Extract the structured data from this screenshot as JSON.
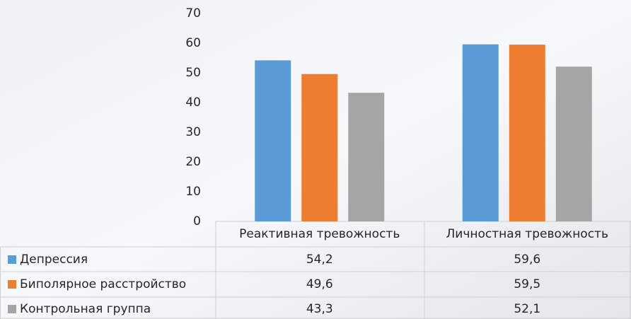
{
  "chart_data": {
    "type": "bar",
    "categories": [
      "Реактивная тревожность",
      "Личностная тревожность"
    ],
    "series": [
      {
        "name": "Депрессия",
        "color": "#5b9bd5",
        "values": [
          54.2,
          59.6
        ],
        "value_labels": [
          "54,2",
          "59,6"
        ]
      },
      {
        "name": "Биполярное расстройство",
        "color": "#ed7d31",
        "values": [
          49.6,
          59.5
        ],
        "value_labels": [
          "49,6",
          "59,5"
        ]
      },
      {
        "name": "Контрольная группа",
        "color": "#a5a5a5",
        "values": [
          43.3,
          52.1
        ],
        "value_labels": [
          "43,3",
          "52,1"
        ]
      }
    ],
    "ylim": [
      0,
      70
    ],
    "yticks": [
      0,
      10,
      20,
      30,
      40,
      50,
      60,
      70
    ],
    "grid": false
  }
}
